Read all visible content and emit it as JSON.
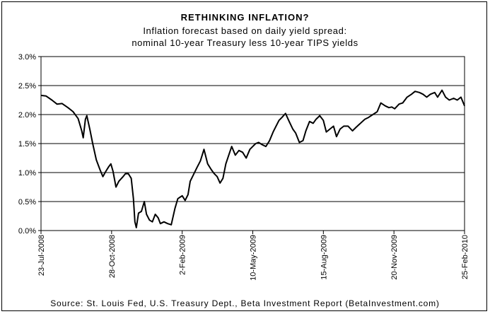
{
  "title": "RETHINKING INFLATION?",
  "subtitle_line1": "Inflation forecast based on daily yield spread:",
  "subtitle_line2": "nominal 10-year Treasury less 10-year TIPS yields",
  "source": "Source: St. Louis Fed, U.S. Treasury Dept., Beta Investment Report (BetaInvestment.com)",
  "chart_data": {
    "type": "line",
    "ylim": [
      0,
      3.0
    ],
    "yticks": [
      "0.0%",
      "0.5%",
      "1.0%",
      "1.5%",
      "2.0%",
      "2.5%",
      "3.0%"
    ],
    "ytick_values": [
      0,
      0.5,
      1.0,
      1.5,
      2.0,
      2.5,
      3.0
    ],
    "grid": "horizontal",
    "xlim": [
      "2008-07-23",
      "2010-02-25"
    ],
    "xticks": [
      "23-Jul-2008",
      "28-Oct-2008",
      "2-Feb-2009",
      "10-May-2009",
      "15-Aug-2009",
      "20-Nov-2009",
      "25-Feb-2010"
    ],
    "xtick_dates": [
      "2008-07-23",
      "2008-10-28",
      "2009-02-02",
      "2009-05-10",
      "2009-08-15",
      "2009-11-20",
      "2010-02-25"
    ],
    "line_color": "#000000",
    "series": [
      {
        "x": [
          "2008-07-23",
          "2008-07-30",
          "2008-08-07",
          "2008-08-14",
          "2008-08-21",
          "2008-08-29",
          "2008-09-05",
          "2008-09-12",
          "2008-09-17",
          "2008-09-19",
          "2008-09-22",
          "2008-09-24",
          "2008-09-28",
          "2008-10-02",
          "2008-10-07",
          "2008-10-12",
          "2008-10-16",
          "2008-10-20",
          "2008-10-24",
          "2008-10-27",
          "2008-10-30",
          "2008-11-03",
          "2008-11-07",
          "2008-11-12",
          "2008-11-16",
          "2008-11-20",
          "2008-11-24",
          "2008-11-27",
          "2008-11-29",
          "2008-12-01",
          "2008-12-04",
          "2008-12-08",
          "2008-12-12",
          "2008-12-15",
          "2008-12-19",
          "2008-12-23",
          "2008-12-27",
          "2008-12-31",
          "2009-01-03",
          "2009-01-08",
          "2009-01-13",
          "2009-01-18",
          "2009-01-23",
          "2009-01-27",
          "2009-02-02",
          "2009-02-06",
          "2009-02-10",
          "2009-02-13",
          "2009-02-17",
          "2009-02-22",
          "2009-02-27",
          "2009-03-04",
          "2009-03-09",
          "2009-03-14",
          "2009-03-18",
          "2009-03-22",
          "2009-03-26",
          "2009-03-30",
          "2009-04-03",
          "2009-04-07",
          "2009-04-11",
          "2009-04-16",
          "2009-04-21",
          "2009-04-26",
          "2009-05-01",
          "2009-05-06",
          "2009-05-10",
          "2009-05-14",
          "2009-05-18",
          "2009-05-23",
          "2009-05-28",
          "2009-06-02",
          "2009-06-07",
          "2009-06-11",
          "2009-06-15",
          "2009-06-19",
          "2009-06-24",
          "2009-06-29",
          "2009-07-04",
          "2009-07-08",
          "2009-07-13",
          "2009-07-18",
          "2009-07-22",
          "2009-07-27",
          "2009-08-01",
          "2009-08-05",
          "2009-08-10",
          "2009-08-15",
          "2009-08-19",
          "2009-08-24",
          "2009-08-29",
          "2009-09-02",
          "2009-09-07",
          "2009-09-12",
          "2009-09-18",
          "2009-09-24",
          "2009-09-29",
          "2009-10-05",
          "2009-10-11",
          "2009-10-16",
          "2009-10-22",
          "2009-10-28",
          "2009-11-02",
          "2009-11-08",
          "2009-11-13",
          "2009-11-17",
          "2009-11-21",
          "2009-11-27",
          "2009-12-02",
          "2009-12-08",
          "2009-12-14",
          "2009-12-19",
          "2009-12-25",
          "2009-12-30",
          "2010-01-04",
          "2010-01-09",
          "2010-01-15",
          "2010-01-19",
          "2010-01-25",
          "2010-01-30",
          "2010-02-04",
          "2010-02-10",
          "2010-02-15",
          "2010-02-20",
          "2010-02-25"
        ],
        "y": [
          2.33,
          2.32,
          2.25,
          2.18,
          2.19,
          2.12,
          2.05,
          1.93,
          1.72,
          1.6,
          1.92,
          1.98,
          1.75,
          1.5,
          1.22,
          1.05,
          0.93,
          1.02,
          1.1,
          1.15,
          1.02,
          0.75,
          0.85,
          0.92,
          0.98,
          0.98,
          0.9,
          0.55,
          0.15,
          0.05,
          0.3,
          0.33,
          0.5,
          0.28,
          0.18,
          0.15,
          0.28,
          0.22,
          0.12,
          0.15,
          0.12,
          0.1,
          0.38,
          0.55,
          0.6,
          0.52,
          0.62,
          0.85,
          0.95,
          1.08,
          1.2,
          1.4,
          1.15,
          1.05,
          0.98,
          0.93,
          0.82,
          0.9,
          1.15,
          1.3,
          1.45,
          1.3,
          1.38,
          1.35,
          1.25,
          1.4,
          1.45,
          1.5,
          1.52,
          1.48,
          1.45,
          1.55,
          1.7,
          1.8,
          1.9,
          1.95,
          2.02,
          1.88,
          1.75,
          1.68,
          1.52,
          1.55,
          1.72,
          1.88,
          1.85,
          1.92,
          1.98,
          1.9,
          1.7,
          1.75,
          1.8,
          1.62,
          1.75,
          1.8,
          1.8,
          1.72,
          1.78,
          1.85,
          1.92,
          1.95,
          2.0,
          2.05,
          2.2,
          2.15,
          2.12,
          2.13,
          2.1,
          2.18,
          2.2,
          2.3,
          2.35,
          2.4,
          2.38,
          2.35,
          2.3,
          2.35,
          2.38,
          2.3,
          2.42,
          2.3,
          2.25,
          2.28,
          2.25,
          2.3,
          2.15
        ]
      }
    ]
  }
}
